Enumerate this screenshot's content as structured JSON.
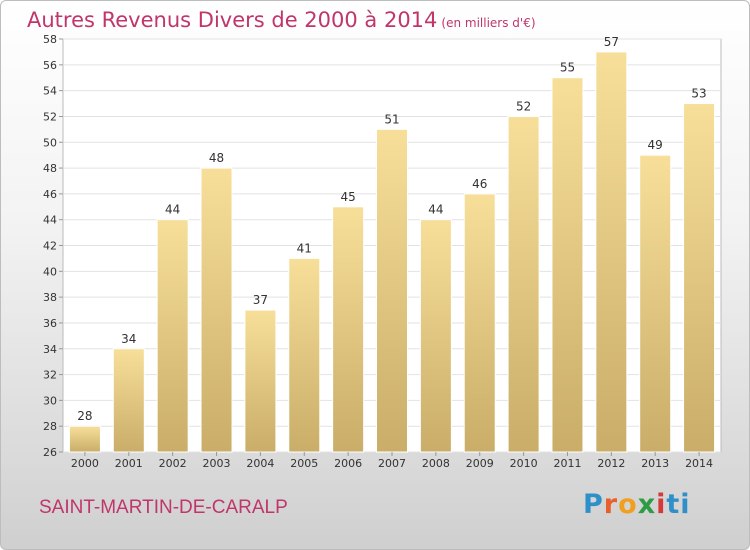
{
  "header": {
    "title": "Autres Revenus Divers de 2000 à 2014",
    "unit": "(en milliers d'€)"
  },
  "footer": {
    "commune": "SAINT-MARTIN-DE-CARALP",
    "logo": [
      "P",
      "r",
      "o",
      "x",
      "i",
      "ti"
    ]
  },
  "chart_data": {
    "type": "bar",
    "title": "Autres Revenus Divers de 2000 à 2014",
    "subtitle": "(en milliers d'€)",
    "categories": [
      "2000",
      "2001",
      "2002",
      "2003",
      "2004",
      "2005",
      "2006",
      "2007",
      "2008",
      "2009",
      "2010",
      "2011",
      "2012",
      "2013",
      "2014"
    ],
    "values": [
      28,
      34,
      44,
      48,
      37,
      41,
      45,
      51,
      44,
      46,
      52,
      55,
      57,
      49,
      53
    ],
    "ylim": [
      26,
      58
    ],
    "yticks": [
      26,
      28,
      30,
      32,
      34,
      36,
      38,
      40,
      42,
      44,
      46,
      48,
      50,
      52,
      54,
      56,
      58
    ],
    "grid": true,
    "bar_color": "#e8c97a",
    "xlabel": "",
    "ylabel": ""
  }
}
